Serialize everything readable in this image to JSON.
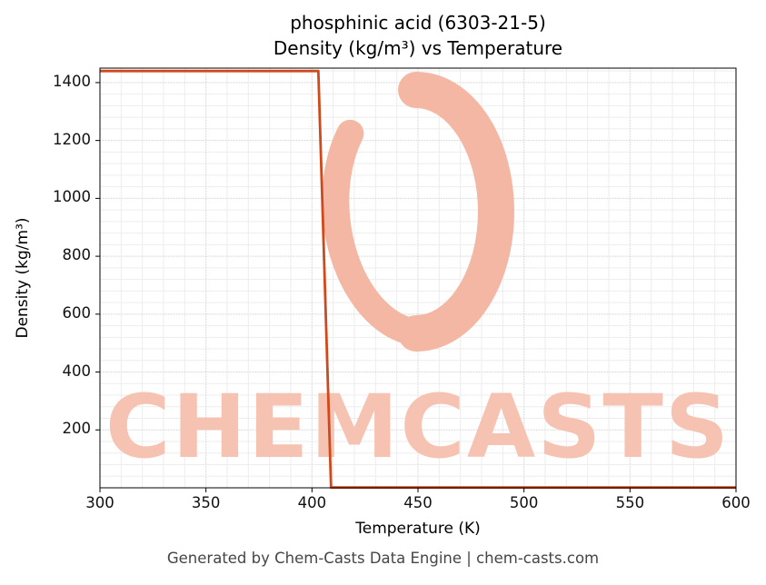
{
  "page": {
    "title_line1": "phosphinic acid (6303-21-5)",
    "title_line2": "Density (kg/m³) vs Temperature",
    "watermark_text": "CHEMCASTS",
    "footer": "Generated by Chem-Casts Data Engine | chem-casts.com"
  },
  "chart_data": {
    "type": "line",
    "title": "phosphinic acid (6303-21-5) — Density (kg/m³) vs Temperature",
    "xlabel": "Temperature (K)",
    "ylabel": "Density (kg/m³)",
    "xlim": [
      300,
      600
    ],
    "ylim": [
      0,
      1450
    ],
    "xticks": [
      300,
      350,
      400,
      450,
      500,
      550,
      600
    ],
    "yticks": [
      200,
      400,
      600,
      800,
      1000,
      1200,
      1400
    ],
    "grid": true,
    "legend": false,
    "line_color": "#d0491d",
    "grid_color": "#d9d9d9",
    "minor_grid_color": "#ededed",
    "watermark_text_color": "#f6c3b3",
    "watermark_logo_color": "#f3b7a4",
    "series": [
      {
        "name": "density",
        "points": [
          [
            300,
            1440
          ],
          [
            403,
            1440
          ],
          [
            409,
            1
          ],
          [
            600,
            1
          ]
        ]
      }
    ]
  }
}
